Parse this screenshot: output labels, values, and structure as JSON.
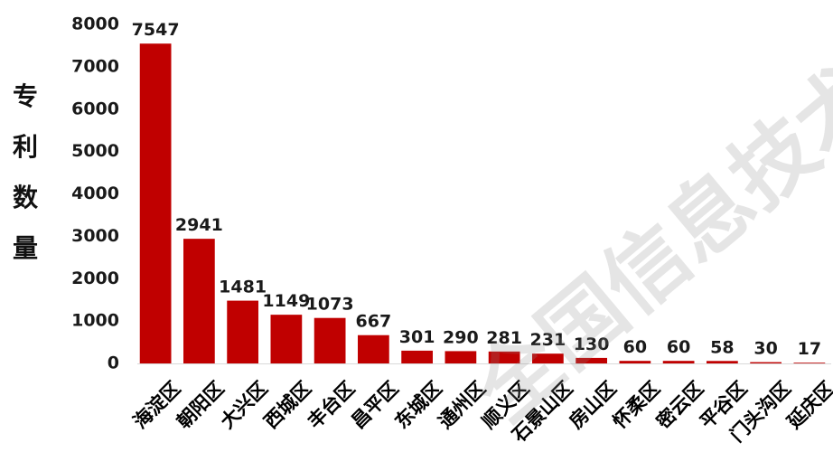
{
  "chart_data": {
    "type": "bar",
    "title": "",
    "xlabel": "",
    "ylabel": "专利数量",
    "ylim": [
      0,
      8000
    ],
    "yticks": [
      0,
      1000,
      2000,
      3000,
      4000,
      5000,
      6000,
      7000,
      8000
    ],
    "grid": false,
    "legend": "none",
    "categories": [
      "海淀区",
      "朝阳区",
      "大兴区",
      "西城区",
      "丰台区",
      "昌平区",
      "东城区",
      "通州区",
      "顺义区",
      "石景山区",
      "房山区",
      "怀柔区",
      "密云区",
      "平谷区",
      "门头沟区",
      "延庆区"
    ],
    "values": [
      7547,
      2941,
      1481,
      1149,
      1073,
      667,
      301,
      290,
      281,
      231,
      130,
      60,
      60,
      58,
      30,
      17
    ],
    "bar_color": "#c00000"
  },
  "watermark": "全国信息技术产"
}
